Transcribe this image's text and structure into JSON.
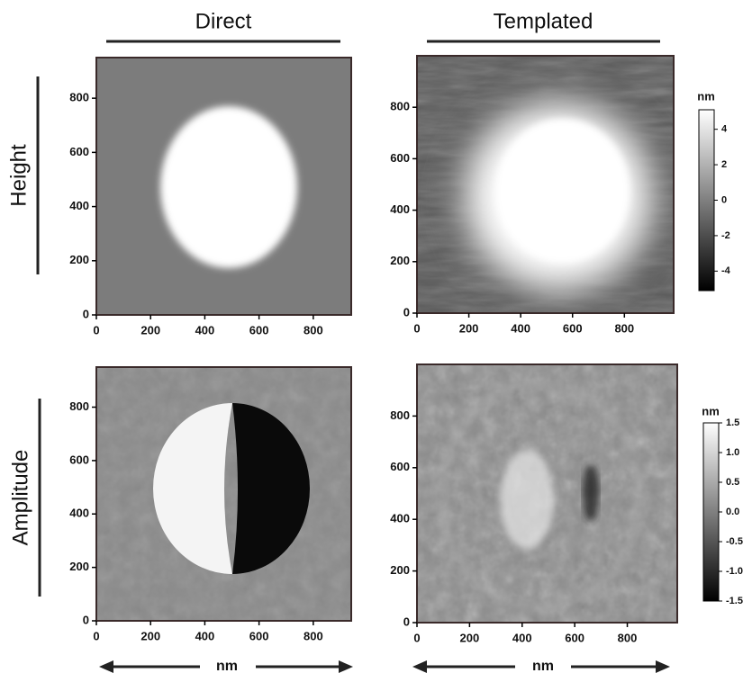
{
  "column_titles": [
    "Direct",
    "Templated"
  ],
  "row_titles": [
    "Height",
    "Amplitude"
  ],
  "x_axis_labels": [
    "nm",
    "nm"
  ],
  "chart_data": [
    {
      "type": "image",
      "xlim": [
        0,
        940
      ],
      "ylim": [
        0,
        950
      ],
      "xticks": [
        0,
        200,
        400,
        600,
        800
      ],
      "yticks": [
        0,
        200,
        400,
        600,
        800
      ]
    },
    {
      "type": "image",
      "xlim": [
        0,
        990
      ],
      "ylim": [
        0,
        1000
      ],
      "xticks": [
        0,
        200,
        400,
        600,
        800
      ],
      "yticks": [
        0,
        200,
        400,
        600,
        800
      ]
    },
    {
      "type": "image",
      "xlim": [
        0,
        940
      ],
      "ylim": [
        0,
        950
      ],
      "xticks": [
        0,
        200,
        400,
        600,
        800
      ],
      "yticks": [
        0,
        200,
        400,
        600,
        800
      ]
    },
    {
      "type": "image",
      "xlim": [
        0,
        990
      ],
      "ylim": [
        0,
        1000
      ],
      "xticks": [
        0,
        200,
        400,
        600,
        800
      ],
      "yticks": [
        0,
        200,
        400,
        600,
        800
      ]
    }
  ],
  "colorbars": [
    {
      "label": "nm",
      "lim": [
        -5.1,
        5.1
      ],
      "ticks": [
        4,
        2,
        0,
        -2,
        -4
      ]
    },
    {
      "label": "nm",
      "lim": [
        -1.5,
        1.5
      ],
      "ticks": [
        1.5,
        {
          "value": 1,
          "label": "1.0"
        },
        0.5,
        {
          "value": 0,
          "label": "0.0"
        },
        -0.5,
        {
          "value": -1,
          "label": "-1.0"
        },
        -1.5
      ]
    }
  ]
}
